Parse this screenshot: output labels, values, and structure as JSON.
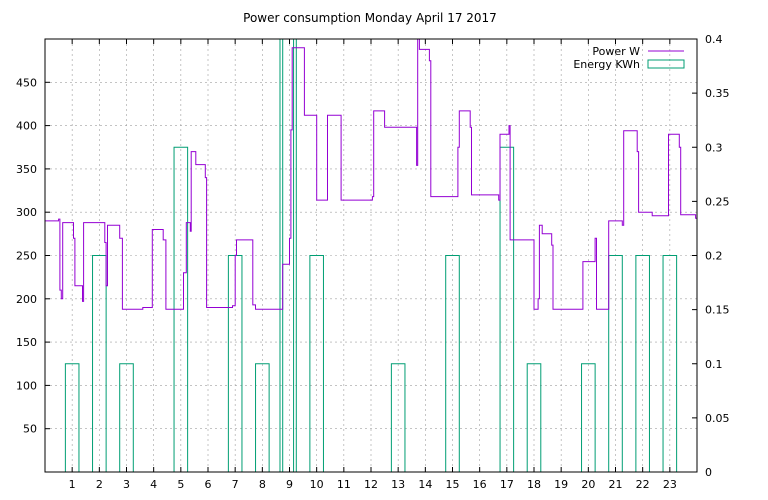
{
  "chart_data": {
    "type": "line",
    "title": "Power consumption Monday April 17 2017",
    "xlabel": "",
    "ylabel": "",
    "y2label": "",
    "grid": true,
    "legend_position": "top-right",
    "xlim": [
      0,
      24
    ],
    "ylim": [
      0,
      500
    ],
    "y2lim": [
      0,
      0.4
    ],
    "x_ticks": [
      1,
      2,
      3,
      4,
      5,
      6,
      7,
      8,
      9,
      10,
      11,
      12,
      13,
      14,
      15,
      16,
      17,
      18,
      19,
      20,
      21,
      22,
      23
    ],
    "y_ticks": [
      50,
      100,
      150,
      200,
      250,
      300,
      350,
      400,
      450
    ],
    "y2_ticks": [
      "0",
      "0.05",
      "0.1",
      "0.15",
      "0.2",
      "0.25",
      "0.3",
      "0.35",
      "0.4"
    ],
    "series": [
      {
        "name": "Power W",
        "axis": "y1",
        "style": "step",
        "color": "#9400d3",
        "points": [
          [
            0.0,
            290
          ],
          [
            0.5,
            292
          ],
          [
            0.55,
            210
          ],
          [
            0.6,
            200
          ],
          [
            0.65,
            288
          ],
          [
            1.0,
            288
          ],
          [
            1.05,
            270
          ],
          [
            1.1,
            215
          ],
          [
            1.3,
            215
          ],
          [
            1.38,
            197
          ],
          [
            1.42,
            288
          ],
          [
            2.1,
            288
          ],
          [
            2.2,
            265
          ],
          [
            2.25,
            215
          ],
          [
            2.3,
            285
          ],
          [
            2.7,
            285
          ],
          [
            2.75,
            270
          ],
          [
            2.85,
            188
          ],
          [
            3.55,
            188
          ],
          [
            3.6,
            190
          ],
          [
            3.9,
            190
          ],
          [
            3.95,
            280
          ],
          [
            4.3,
            280
          ],
          [
            4.35,
            268
          ],
          [
            4.45,
            188
          ],
          [
            5.0,
            188
          ],
          [
            5.1,
            230
          ],
          [
            5.2,
            288
          ],
          [
            5.3,
            288
          ],
          [
            5.35,
            278
          ],
          [
            5.38,
            370
          ],
          [
            5.5,
            370
          ],
          [
            5.55,
            355
          ],
          [
            5.85,
            355
          ],
          [
            5.9,
            340
          ],
          [
            5.95,
            190
          ],
          [
            6.85,
            190
          ],
          [
            6.9,
            192
          ],
          [
            7.0,
            250
          ],
          [
            7.05,
            268
          ],
          [
            7.6,
            268
          ],
          [
            7.65,
            193
          ],
          [
            7.75,
            188
          ],
          [
            8.7,
            188
          ],
          [
            8.75,
            240
          ],
          [
            8.95,
            240
          ],
          [
            9.0,
            270
          ],
          [
            9.05,
            395
          ],
          [
            9.1,
            490
          ],
          [
            9.5,
            490
          ],
          [
            9.55,
            412
          ],
          [
            9.95,
            412
          ],
          [
            10.0,
            314
          ],
          [
            10.35,
            314
          ],
          [
            10.4,
            412
          ],
          [
            10.85,
            412
          ],
          [
            10.9,
            314
          ],
          [
            12.0,
            314
          ],
          [
            12.05,
            318
          ],
          [
            12.1,
            417
          ],
          [
            12.45,
            417
          ],
          [
            12.5,
            398
          ],
          [
            13.65,
            398
          ],
          [
            13.68,
            354
          ],
          [
            13.72,
            500
          ],
          [
            13.78,
            488
          ],
          [
            14.1,
            488
          ],
          [
            14.15,
            475
          ],
          [
            14.2,
            318
          ],
          [
            15.15,
            318
          ],
          [
            15.2,
            375
          ],
          [
            15.25,
            417
          ],
          [
            15.6,
            417
          ],
          [
            15.65,
            398
          ],
          [
            15.7,
            320
          ],
          [
            16.65,
            320
          ],
          [
            16.7,
            314
          ],
          [
            16.75,
            390
          ],
          [
            17.05,
            390
          ],
          [
            17.08,
            400
          ],
          [
            17.12,
            268
          ],
          [
            17.95,
            268
          ],
          [
            18.0,
            188
          ],
          [
            18.1,
            188
          ],
          [
            18.15,
            200
          ],
          [
            18.2,
            285
          ],
          [
            18.3,
            275
          ],
          [
            18.6,
            275
          ],
          [
            18.65,
            262
          ],
          [
            18.7,
            188
          ],
          [
            19.75,
            188
          ],
          [
            19.8,
            243
          ],
          [
            20.2,
            243
          ],
          [
            20.25,
            270
          ],
          [
            20.3,
            188
          ],
          [
            20.7,
            188
          ],
          [
            20.75,
            290
          ],
          [
            21.2,
            290
          ],
          [
            21.25,
            285
          ],
          [
            21.3,
            394
          ],
          [
            21.75,
            394
          ],
          [
            21.8,
            370
          ],
          [
            21.85,
            300
          ],
          [
            22.3,
            300
          ],
          [
            22.35,
            296
          ],
          [
            22.9,
            296
          ],
          [
            22.95,
            390
          ],
          [
            23.3,
            390
          ],
          [
            23.35,
            375
          ],
          [
            23.4,
            297
          ],
          [
            23.9,
            297
          ],
          [
            23.95,
            293
          ],
          [
            24.0,
            293
          ]
        ]
      },
      {
        "name": "Energy KWh",
        "axis": "y2",
        "style": "boxes",
        "color": "#009e73",
        "bars": [
          {
            "x": 1,
            "value": 0.1
          },
          {
            "x": 2,
            "value": 0.2
          },
          {
            "x": 3,
            "value": 0.1
          },
          {
            "x": 4,
            "value": 0.0
          },
          {
            "x": 5,
            "value": 0.3
          },
          {
            "x": 6,
            "value": 0.0
          },
          {
            "x": 7,
            "value": 0.2
          },
          {
            "x": 8,
            "value": 0.1
          },
          {
            "x": 9,
            "value": 0.4
          },
          {
            "x": 10,
            "value": 0.2
          },
          {
            "x": 11,
            "value": 0.0
          },
          {
            "x": 12,
            "value": 0.0
          },
          {
            "x": 13,
            "value": 0.1
          },
          {
            "x": 14,
            "value": 0.0
          },
          {
            "x": 15,
            "value": 0.2
          },
          {
            "x": 16,
            "value": 0.0
          },
          {
            "x": 17,
            "value": 0.3
          },
          {
            "x": 18,
            "value": 0.1
          },
          {
            "x": 19,
            "value": 0.0
          },
          {
            "x": 20,
            "value": 0.1
          },
          {
            "x": 21,
            "value": 0.2
          },
          {
            "x": 22,
            "value": 0.2
          },
          {
            "x": 23,
            "value": 0.2
          }
        ],
        "extra_bars": [
          {
            "x": 8.9,
            "value": 0.4
          }
        ]
      }
    ]
  }
}
